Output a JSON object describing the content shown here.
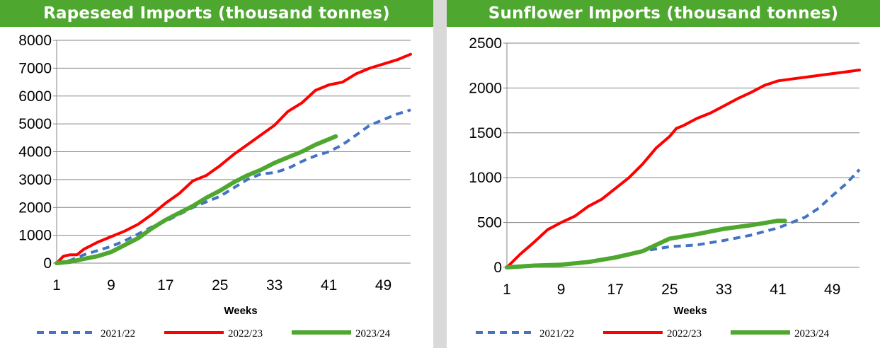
{
  "chart_data": [
    {
      "type": "line",
      "title": "Rapeseed Imports (thousand tonnes)",
      "xlabel": "Weeks",
      "ylabel": "",
      "xlim": [
        1,
        53
      ],
      "ylim": [
        0,
        8000
      ],
      "x_ticks": [
        1,
        9,
        17,
        25,
        33,
        41,
        49
      ],
      "y_ticks": [
        0,
        1000,
        2000,
        3000,
        4000,
        5000,
        6000,
        7000,
        8000
      ],
      "grid": true,
      "legend_position": "bottom",
      "series": [
        {
          "name": "2021/22",
          "color": "#4472c4",
          "style": "dashed",
          "x": [
            1,
            3,
            5,
            7,
            9,
            11,
            13,
            15,
            17,
            19,
            21,
            23,
            25,
            27,
            29,
            31,
            33,
            35,
            37,
            39,
            41,
            43,
            45,
            47,
            49,
            51,
            53
          ],
          "y": [
            0,
            100,
            300,
            450,
            600,
            800,
            1050,
            1300,
            1500,
            1750,
            2000,
            2200,
            2400,
            2700,
            3000,
            3200,
            3250,
            3400,
            3650,
            3850,
            4000,
            4250,
            4600,
            4950,
            5150,
            5350,
            5500
          ]
        },
        {
          "name": "2022/23",
          "color": "#ff0000",
          "style": "solid",
          "x": [
            1,
            2,
            3,
            4,
            5,
            7,
            9,
            11,
            13,
            15,
            17,
            19,
            21,
            23,
            25,
            27,
            29,
            31,
            33,
            35,
            37,
            39,
            41,
            43,
            45,
            47,
            49,
            51,
            53
          ],
          "y": [
            0,
            250,
            300,
            300,
            500,
            750,
            950,
            1150,
            1400,
            1750,
            2150,
            2500,
            2950,
            3150,
            3500,
            3900,
            4250,
            4600,
            4950,
            5450,
            5750,
            6200,
            6400,
            6500,
            6800,
            7000,
            7150,
            7300,
            7500
          ]
        },
        {
          "name": "2023/24",
          "color": "#4ea72e",
          "style": "solid",
          "x": [
            1,
            3,
            5,
            7,
            9,
            11,
            13,
            15,
            17,
            19,
            21,
            23,
            25,
            27,
            29,
            31,
            33,
            35,
            37,
            39,
            41,
            42
          ],
          "y": [
            0,
            50,
            150,
            250,
            400,
            650,
            900,
            1250,
            1550,
            1800,
            2050,
            2350,
            2600,
            2900,
            3150,
            3350,
            3600,
            3800,
            4000,
            4250,
            4450,
            4550
          ]
        }
      ]
    },
    {
      "type": "line",
      "title": "Sunflower Imports (thousand tonnes)",
      "xlabel": "Weeks",
      "ylabel": "",
      "xlim": [
        1,
        53
      ],
      "ylim": [
        0,
        2500
      ],
      "x_ticks": [
        1,
        9,
        17,
        25,
        33,
        41,
        49
      ],
      "y_ticks": [
        0,
        500,
        1000,
        1500,
        2000,
        2500
      ],
      "grid": true,
      "legend_position": "bottom",
      "series": [
        {
          "name": "2021/22",
          "color": "#4472c4",
          "style": "dashed",
          "x": [
            1,
            5,
            9,
            13,
            17,
            21,
            25,
            29,
            33,
            37,
            41,
            43,
            45,
            47,
            49,
            51,
            53
          ],
          "y": [
            0,
            15,
            30,
            60,
            120,
            180,
            230,
            250,
            300,
            360,
            440,
            500,
            560,
            660,
            800,
            930,
            1090
          ]
        },
        {
          "name": "2022/23",
          "color": "#ff0000",
          "style": "solid",
          "x": [
            1,
            3,
            5,
            7,
            9,
            11,
            13,
            15,
            17,
            19,
            21,
            23,
            25,
            26,
            27,
            29,
            31,
            33,
            35,
            37,
            39,
            41,
            43,
            45,
            47,
            49,
            51,
            53
          ],
          "y": [
            0,
            150,
            280,
            420,
            500,
            570,
            680,
            760,
            880,
            1000,
            1150,
            1330,
            1460,
            1550,
            1580,
            1660,
            1720,
            1800,
            1880,
            1950,
            2030,
            2080,
            2100,
            2120,
            2140,
            2160,
            2180,
            2200
          ]
        },
        {
          "name": "2023/24",
          "color": "#4ea72e",
          "style": "solid",
          "x": [
            1,
            5,
            9,
            13,
            17,
            21,
            25,
            29,
            33,
            37,
            41,
            42
          ],
          "y": [
            0,
            20,
            30,
            60,
            110,
            180,
            320,
            370,
            430,
            470,
            520,
            520
          ]
        }
      ]
    }
  ]
}
